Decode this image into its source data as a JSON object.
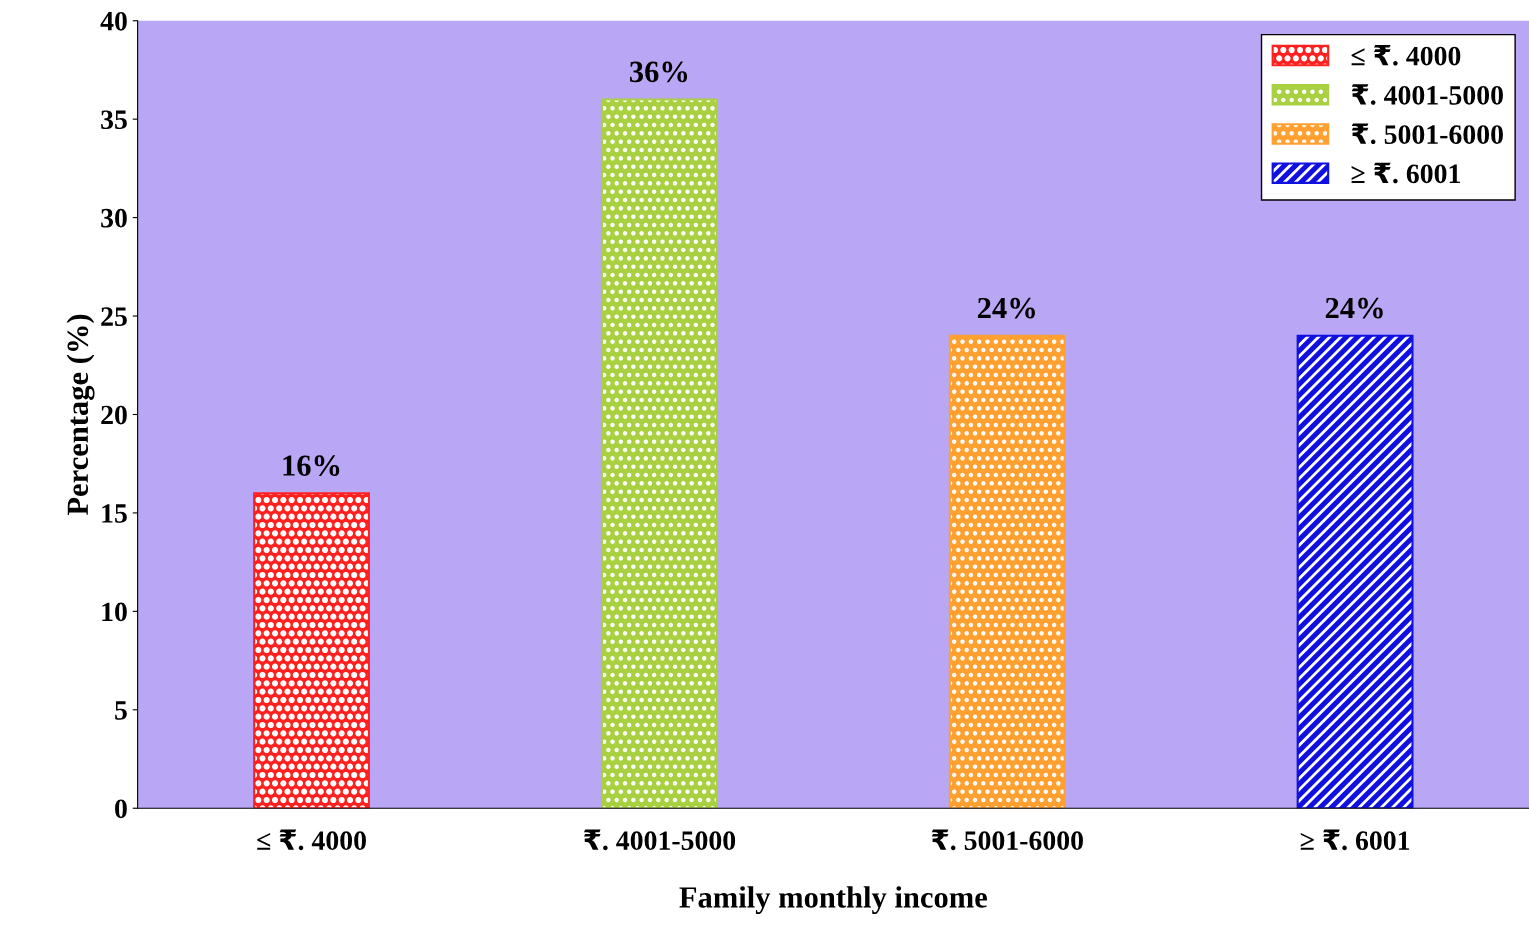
{
  "chart_data": {
    "type": "bar",
    "xlabel": "Family monthly income",
    "ylabel": "Percentage (%)",
    "categories": [
      "≤ ₹. 4000",
      "₹. 4001-5000",
      "₹. 5001-6000",
      "≥ ₹. 6001"
    ],
    "series": [
      {
        "name": "≤ ₹. 4000",
        "color": "#ff2020",
        "values": [
          16,
          null,
          null,
          null
        ],
        "value_labels": [
          "16%",
          null,
          null,
          null
        ]
      },
      {
        "name": "₹. 4001-5000",
        "color": "#a8d040",
        "values": [
          null,
          36,
          null,
          null
        ],
        "value_labels": [
          null,
          "36%",
          null,
          null
        ]
      },
      {
        "name": "₹. 5001-6000",
        "color": "#ffa030",
        "values": [
          null,
          null,
          24,
          null
        ],
        "value_labels": [
          null,
          null,
          "24%",
          null
        ]
      },
      {
        "name": "≥ ₹. 6001",
        "color": "#1010e0",
        "values": [
          null,
          null,
          null,
          24
        ],
        "value_labels": [
          null,
          null,
          null,
          "24%"
        ]
      }
    ],
    "ylim": [
      0,
      40
    ],
    "yticks": [
      0,
      5,
      10,
      15,
      20,
      25,
      30,
      35,
      40
    ],
    "grid": false,
    "legend": "top right"
  }
}
